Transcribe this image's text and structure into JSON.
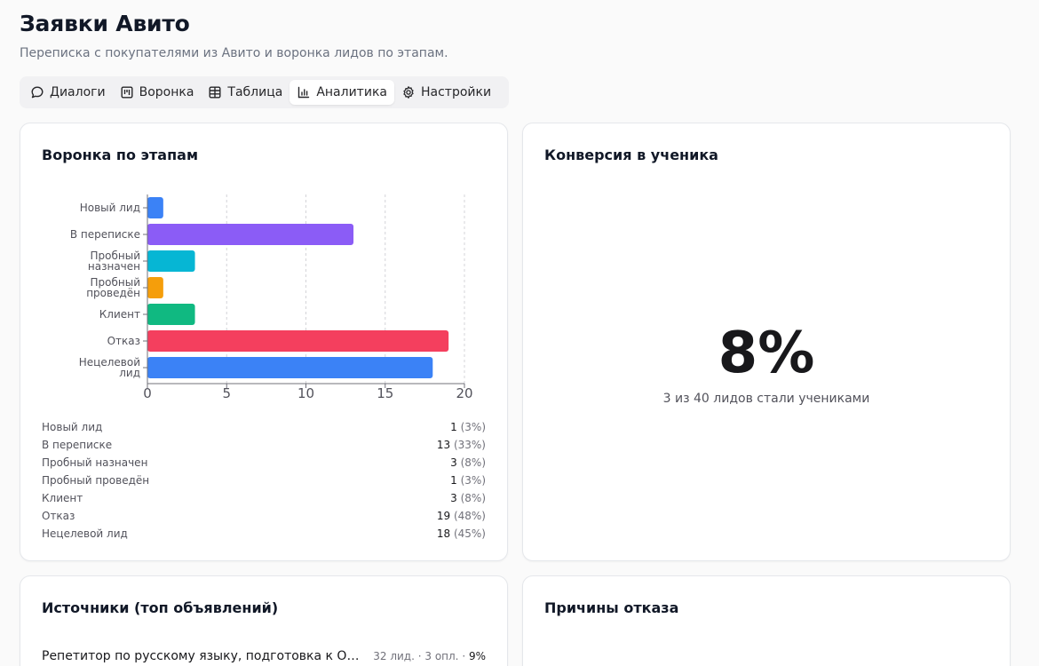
{
  "page": {
    "title": "Заявки Авито",
    "subtitle": "Переписка с покупателями из Авито и воронка лидов по этапам."
  },
  "tabs": [
    {
      "label": "Диалоги",
      "icon": "chat-bubble-icon",
      "active": false
    },
    {
      "label": "Воронка",
      "icon": "kanban-icon",
      "active": false
    },
    {
      "label": "Таблица",
      "icon": "table-icon",
      "active": false
    },
    {
      "label": "Аналитика",
      "icon": "bar-chart-icon",
      "active": true
    },
    {
      "label": "Настройки",
      "icon": "gear-icon",
      "active": false
    }
  ],
  "funnel": {
    "title": "Воронка по этапам",
    "stages": [
      {
        "name": "Новый лид",
        "count": "1",
        "pct": "(3%)"
      },
      {
        "name": "В переписке",
        "count": "13",
        "pct": "(33%)"
      },
      {
        "name": "Пробный назначен",
        "count": "3",
        "pct": "(8%)"
      },
      {
        "name": "Пробный проведён",
        "count": "1",
        "pct": "(3%)"
      },
      {
        "name": "Клиент",
        "count": "3",
        "pct": "(8%)"
      },
      {
        "name": "Отказ",
        "count": "19",
        "pct": "(48%)"
      },
      {
        "name": "Нецелевой лид",
        "count": "18",
        "pct": "(45%)"
      }
    ]
  },
  "chart_data": {
    "type": "bar",
    "orientation": "horizontal",
    "categories": [
      [
        "Новый лид"
      ],
      [
        "В переписке"
      ],
      [
        "Пробный",
        "назначен"
      ],
      [
        "Пробный",
        "проведён"
      ],
      [
        "Клиент"
      ],
      [
        "Отказ"
      ],
      [
        "Нецелевой",
        "лид"
      ]
    ],
    "values": [
      1,
      13,
      3,
      1,
      3,
      19,
      18
    ],
    "colors": [
      "#3b82f6",
      "#8b5cf6",
      "#06b6d4",
      "#f59e0b",
      "#10b981",
      "#f43f5e",
      "#3b82f6"
    ],
    "xlim": [
      0,
      20
    ],
    "xticks": [
      "0",
      "5",
      "10",
      "15",
      "20"
    ],
    "grid": true,
    "title": "",
    "xlabel": "",
    "ylabel": ""
  },
  "conversion": {
    "title": "Конверсия в ученика",
    "value": "8%",
    "caption": "3 из 40 лидов стали учениками"
  },
  "sources": {
    "title": "Источники (топ объявлений)",
    "items": [
      {
        "name": "Репетитор по русскому языку, подготовка к ОГЭ и ЕГЭ",
        "leads": "32 лид.",
        "paid": "3 опл.",
        "conv": "9%"
      }
    ]
  },
  "reasons": {
    "title": "Причины отказа"
  }
}
